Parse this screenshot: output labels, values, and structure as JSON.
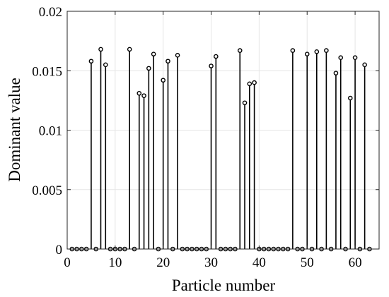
{
  "chart_data": {
    "type": "stem",
    "title": "",
    "xlabel": "Particle number",
    "ylabel": "Dominant value",
    "xlim": [
      0,
      65
    ],
    "ylim": [
      0,
      0.02
    ],
    "xticks": [
      "0",
      "10",
      "20",
      "30",
      "40",
      "50",
      "60"
    ],
    "xtick_values": [
      0,
      10,
      20,
      30,
      40,
      50,
      60
    ],
    "yticks": [
      "0",
      "0.005",
      "0.01",
      "0.015",
      "0.02"
    ],
    "ytick_values": [
      0,
      0.005,
      0.01,
      0.015,
      0.02
    ],
    "grid": true,
    "legend": "none",
    "marker": "open-circle",
    "color": "#000000",
    "x": [
      1,
      2,
      3,
      4,
      5,
      6,
      7,
      8,
      9,
      10,
      11,
      12,
      13,
      14,
      15,
      16,
      17,
      18,
      19,
      20,
      21,
      22,
      23,
      24,
      25,
      26,
      27,
      28,
      29,
      30,
      31,
      32,
      33,
      34,
      35,
      36,
      37,
      38,
      39,
      40,
      41,
      42,
      43,
      44,
      45,
      46,
      47,
      48,
      49,
      50,
      51,
      52,
      53,
      54,
      55,
      56,
      57,
      58,
      59,
      60,
      61,
      62,
      63
    ],
    "values": [
      0,
      0,
      0,
      0,
      0.0158,
      0,
      0.0168,
      0.0155,
      0,
      0,
      0,
      0,
      0.0168,
      0,
      0.0131,
      0.0129,
      0.0152,
      0.0164,
      0,
      0.0142,
      0.0158,
      0,
      0.0163,
      0,
      0,
      0,
      0,
      0,
      0,
      0.0154,
      0.0162,
      0,
      0,
      0,
      0,
      0.0167,
      0.0123,
      0.0139,
      0.014,
      0,
      0,
      0,
      0,
      0,
      0,
      0,
      0.0167,
      0,
      0,
      0.0164,
      0,
      0.0166,
      0,
      0.0167,
      0,
      0.0148,
      0.0161,
      0,
      0.0127,
      0.0161,
      0,
      0.0155,
      0
    ]
  }
}
